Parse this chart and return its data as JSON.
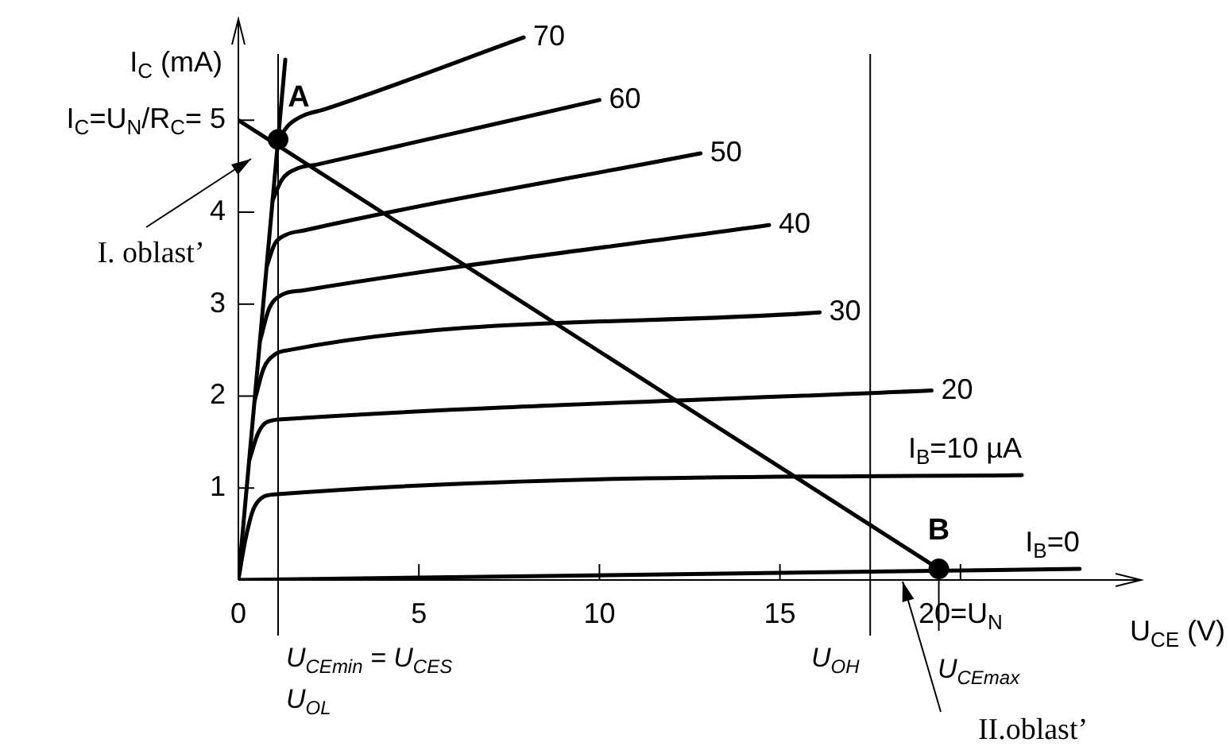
{
  "chart_data": {
    "type": "line",
    "xlabel": "U$_{CE}$ (V)",
    "ylabel": "I$_{C}$ (mA)",
    "xlim": [
      0,
      25
    ],
    "ylim": [
      0,
      6.1
    ],
    "xticks": [
      0,
      5,
      10,
      15,
      {
        "value": 20,
        "label": "20=U$_{N}$"
      }
    ],
    "yticks": [
      1,
      2,
      3,
      4,
      {
        "value": 5,
        "label": "I$_{C}$=U$_{N}$/R$_{C}$= 5"
      }
    ],
    "grid": false,
    "legend": false,
    "marker": "none",
    "line_style": "solid",
    "series": [
      {
        "name": "70",
        "color": "#000000",
        "x": [
          1.1,
          1.4,
          1.8,
          2.4,
          7.9
        ],
        "values": [
          4.79,
          4.95,
          5.05,
          5.12,
          5.9
        ]
      },
      {
        "name": "60",
        "color": "#000000",
        "x": [
          0.95,
          1.2,
          1.6,
          2.2,
          10.0
        ],
        "values": [
          4.13,
          4.35,
          4.47,
          4.52,
          5.22
        ]
      },
      {
        "name": "50",
        "color": "#000000",
        "x": [
          0.78,
          1.0,
          1.3,
          1.8,
          12.8
        ],
        "values": [
          3.4,
          3.65,
          3.75,
          3.8,
          4.64
        ]
      },
      {
        "name": "40",
        "color": "#000000",
        "x": [
          0.6,
          0.85,
          1.2,
          1.8,
          14.7
        ],
        "values": [
          2.6,
          2.95,
          3.1,
          3.15,
          3.86
        ]
      },
      {
        "name": "30",
        "color": "#000000",
        "x": [
          0.45,
          0.7,
          1.0,
          1.4,
          16.1
        ],
        "values": [
          1.95,
          2.3,
          2.45,
          2.5,
          2.91
        ]
      },
      {
        "name": "20",
        "color": "#000000",
        "x": [
          0.3,
          0.55,
          0.8,
          1.3,
          19.2
        ],
        "values": [
          1.3,
          1.6,
          1.72,
          1.75,
          2.06
        ]
      },
      {
        "name": "I$_{B}$=10 µA",
        "color": "#000000",
        "x": [
          0,
          0.2,
          0.45,
          1.0,
          21.7
        ],
        "values": [
          0,
          0.45,
          0.8,
          0.93,
          1.14
        ]
      },
      {
        "name": "I$_{B}$=0",
        "color": "#000000",
        "x": [
          0,
          23.3
        ],
        "values": [
          0,
          0.12
        ]
      },
      {
        "color": "#000000",
        "x": [
          0,
          1.3
        ],
        "values": [
          0,
          5.66
        ]
      },
      {
        "color": "#000000",
        "x": [
          0,
          19.4
        ],
        "values": [
          5,
          0.12
        ]
      },
      {
        "type": "scatter",
        "marker": "circle",
        "color": "#000000",
        "x": [
          1.1,
          19.4
        ],
        "values": [
          4.79,
          0.12
        ]
      }
    ],
    "ref_lines": [
      {
        "axis": "x",
        "value": 1.1,
        "label": "U$_{CEmin}$ = U$_{CES}$\nU$_{OL}$"
      },
      {
        "axis": "x",
        "value": 17.5,
        "label": "U$_{OH}$"
      },
      {
        "axis": "x",
        "value": 19.4,
        "label": "U$_{CEmax}$"
      }
    ],
    "annotations": [
      "I. oblast’",
      "II.oblast’",
      "A",
      "B"
    ]
  }
}
